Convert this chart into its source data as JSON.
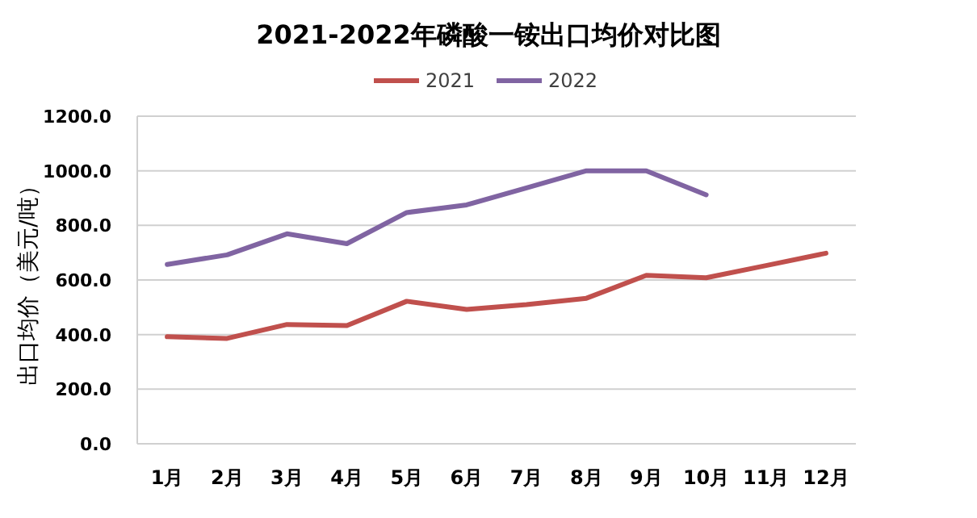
{
  "chart_data": {
    "type": "line",
    "title": "2021-2022年磷酸一铵出口均价对比图",
    "ylabel": "出口均价（美元/吨）",
    "categories": [
      "1月",
      "2月",
      "3月",
      "4月",
      "5月",
      "6月",
      "7月",
      "8月",
      "9月",
      "10月",
      "11月",
      "12月"
    ],
    "series": [
      {
        "name": "2021",
        "color": "#c0504d",
        "values": [
          392,
          386,
          437,
          433,
          522,
          492,
          510,
          533,
          617,
          608,
          653,
          698
        ]
      },
      {
        "name": "2022",
        "color": "#8064a2",
        "values": [
          657,
          692,
          769,
          733,
          847,
          875,
          937,
          1000,
          1000,
          912,
          null,
          null
        ]
      }
    ],
    "ylim": [
      0,
      1200
    ],
    "yticks": [
      {
        "value": 0,
        "label": "0.0"
      },
      {
        "value": 200,
        "label": "200.0"
      },
      {
        "value": 400,
        "label": "400.0"
      },
      {
        "value": 600,
        "label": "600.0"
      },
      {
        "value": 800,
        "label": "800.0"
      },
      {
        "value": 1000,
        "label": "1000.0"
      },
      {
        "value": 1200,
        "label": "1200.0"
      }
    ],
    "grid": "y",
    "legend": "top",
    "marker": "none",
    "line_style": "solid"
  }
}
